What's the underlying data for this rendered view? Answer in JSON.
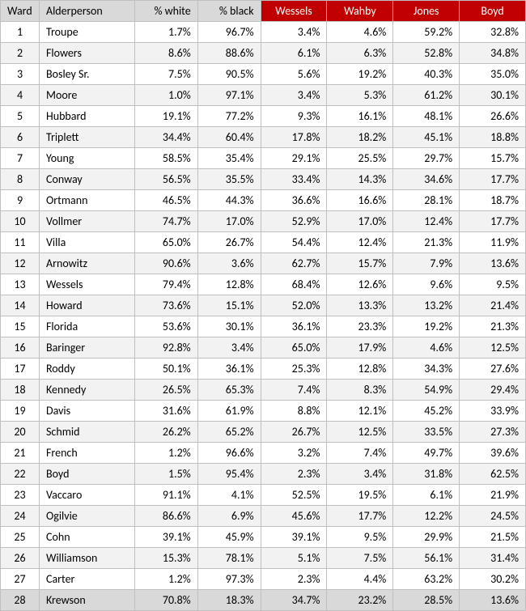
{
  "columns": {
    "ward": "Ward",
    "alderperson": "Alderperson",
    "pct_white": "% white",
    "pct_black": "% black",
    "wessels": "Wessels",
    "wahby": "Wahby",
    "jones": "Jones",
    "boyd": "Boyd"
  },
  "header_styles": {
    "left_bg": "#d9d9d9",
    "red_bg": "#c00000",
    "red_text": "#ffffff"
  },
  "row_styles": {
    "odd_bg": "#ffffff",
    "even_bg": "#f2f2f2",
    "last_bg": "#d9d9d9",
    "border_color": "#bfbfbf"
  },
  "rows": [
    {
      "ward": "1",
      "name": "Troupe",
      "pw": "1.7%",
      "pb": "96.7%",
      "wessels": "3.4%",
      "wahby": "4.6%",
      "jones": "59.2%",
      "boyd": "32.8%"
    },
    {
      "ward": "2",
      "name": "Flowers",
      "pw": "8.6%",
      "pb": "88.6%",
      "wessels": "6.1%",
      "wahby": "6.3%",
      "jones": "52.8%",
      "boyd": "34.8%"
    },
    {
      "ward": "3",
      "name": "Bosley Sr.",
      "pw": "7.5%",
      "pb": "90.5%",
      "wessels": "5.6%",
      "wahby": "19.2%",
      "jones": "40.3%",
      "boyd": "35.0%"
    },
    {
      "ward": "4",
      "name": "Moore",
      "pw": "1.0%",
      "pb": "97.1%",
      "wessels": "3.4%",
      "wahby": "5.3%",
      "jones": "61.2%",
      "boyd": "30.1%"
    },
    {
      "ward": "5",
      "name": "Hubbard",
      "pw": "19.1%",
      "pb": "77.2%",
      "wessels": "9.3%",
      "wahby": "16.1%",
      "jones": "48.1%",
      "boyd": "26.6%"
    },
    {
      "ward": "6",
      "name": "Triplett",
      "pw": "34.4%",
      "pb": "60.4%",
      "wessels": "17.8%",
      "wahby": "18.2%",
      "jones": "45.1%",
      "boyd": "18.8%"
    },
    {
      "ward": "7",
      "name": "Young",
      "pw": "58.5%",
      "pb": "35.4%",
      "wessels": "29.1%",
      "wahby": "25.5%",
      "jones": "29.7%",
      "boyd": "15.7%"
    },
    {
      "ward": "8",
      "name": "Conway",
      "pw": "56.5%",
      "pb": "35.5%",
      "wessels": "33.4%",
      "wahby": "14.3%",
      "jones": "34.6%",
      "boyd": "17.7%"
    },
    {
      "ward": "9",
      "name": "Ortmann",
      "pw": "46.5%",
      "pb": "44.3%",
      "wessels": "36.6%",
      "wahby": "16.6%",
      "jones": "28.1%",
      "boyd": "18.7%"
    },
    {
      "ward": "10",
      "name": "Vollmer",
      "pw": "74.7%",
      "pb": "17.0%",
      "wessels": "52.9%",
      "wahby": "17.0%",
      "jones": "12.4%",
      "boyd": "17.7%"
    },
    {
      "ward": "11",
      "name": "Villa",
      "pw": "65.0%",
      "pb": "26.7%",
      "wessels": "54.4%",
      "wahby": "12.4%",
      "jones": "21.3%",
      "boyd": "11.9%"
    },
    {
      "ward": "12",
      "name": "Arnowitz",
      "pw": "90.6%",
      "pb": "3.6%",
      "wessels": "62.7%",
      "wahby": "15.7%",
      "jones": "7.9%",
      "boyd": "13.6%"
    },
    {
      "ward": "13",
      "name": "Wessels",
      "pw": "79.4%",
      "pb": "12.8%",
      "wessels": "68.4%",
      "wahby": "12.6%",
      "jones": "9.6%",
      "boyd": "9.5%"
    },
    {
      "ward": "14",
      "name": "Howard",
      "pw": "73.6%",
      "pb": "15.1%",
      "wessels": "52.0%",
      "wahby": "13.3%",
      "jones": "13.2%",
      "boyd": "21.4%"
    },
    {
      "ward": "15",
      "name": "Florida",
      "pw": "53.6%",
      "pb": "30.1%",
      "wessels": "36.1%",
      "wahby": "23.3%",
      "jones": "19.2%",
      "boyd": "21.3%"
    },
    {
      "ward": "16",
      "name": "Baringer",
      "pw": "92.8%",
      "pb": "3.4%",
      "wessels": "65.0%",
      "wahby": "17.9%",
      "jones": "4.6%",
      "boyd": "12.5%"
    },
    {
      "ward": "17",
      "name": "Roddy",
      "pw": "50.1%",
      "pb": "36.1%",
      "wessels": "25.3%",
      "wahby": "12.8%",
      "jones": "34.3%",
      "boyd": "27.6%"
    },
    {
      "ward": "18",
      "name": "Kennedy",
      "pw": "26.5%",
      "pb": "65.3%",
      "wessels": "7.4%",
      "wahby": "8.3%",
      "jones": "54.9%",
      "boyd": "29.4%"
    },
    {
      "ward": "19",
      "name": "Davis",
      "pw": "31.6%",
      "pb": "61.9%",
      "wessels": "8.8%",
      "wahby": "12.1%",
      "jones": "45.2%",
      "boyd": "33.9%"
    },
    {
      "ward": "20",
      "name": "Schmid",
      "pw": "26.2%",
      "pb": "65.2%",
      "wessels": "26.7%",
      "wahby": "12.5%",
      "jones": "33.5%",
      "boyd": "27.3%"
    },
    {
      "ward": "21",
      "name": "French",
      "pw": "1.2%",
      "pb": "96.6%",
      "wessels": "3.2%",
      "wahby": "7.4%",
      "jones": "49.7%",
      "boyd": "39.6%"
    },
    {
      "ward": "22",
      "name": "Boyd",
      "pw": "1.5%",
      "pb": "95.4%",
      "wessels": "2.3%",
      "wahby": "3.4%",
      "jones": "31.8%",
      "boyd": "62.5%"
    },
    {
      "ward": "23",
      "name": "Vaccaro",
      "pw": "91.1%",
      "pb": "4.1%",
      "wessels": "52.5%",
      "wahby": "19.5%",
      "jones": "6.1%",
      "boyd": "21.9%"
    },
    {
      "ward": "24",
      "name": "Ogilvie",
      "pw": "86.6%",
      "pb": "6.9%",
      "wessels": "45.6%",
      "wahby": "17.7%",
      "jones": "12.2%",
      "boyd": "24.5%"
    },
    {
      "ward": "25",
      "name": "Cohn",
      "pw": "39.1%",
      "pb": "45.9%",
      "wessels": "39.1%",
      "wahby": "9.5%",
      "jones": "29.9%",
      "boyd": "21.5%"
    },
    {
      "ward": "26",
      "name": "Williamson",
      "pw": "15.3%",
      "pb": "78.1%",
      "wessels": "5.1%",
      "wahby": "7.5%",
      "jones": "56.1%",
      "boyd": "31.4%"
    },
    {
      "ward": "27",
      "name": "Carter",
      "pw": "1.2%",
      "pb": "97.3%",
      "wessels": "2.3%",
      "wahby": "4.4%",
      "jones": "63.2%",
      "boyd": "30.2%"
    },
    {
      "ward": "28",
      "name": "Krewson",
      "pw": "70.8%",
      "pb": "18.3%",
      "wessels": "34.7%",
      "wahby": "23.2%",
      "jones": "28.5%",
      "boyd": "13.6%"
    }
  ]
}
